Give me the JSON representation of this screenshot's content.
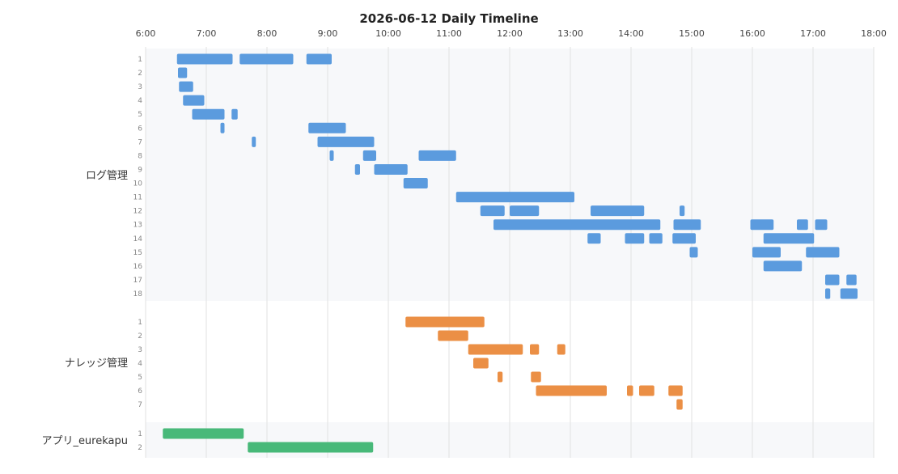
{
  "chart_data": {
    "type": "timeline",
    "title": "2026-06-12 Daily Timeline",
    "x_ticks": [
      "6:00",
      "7:00",
      "8:00",
      "9:00",
      "10:00",
      "11:00",
      "12:00",
      "13:00",
      "14:00",
      "15:00",
      "16:00",
      "17:00",
      "18:00"
    ],
    "xlim": [
      "6:00",
      "18:00"
    ],
    "grid": true,
    "groups": [
      {
        "name": "ログ管理",
        "color": "#5b9bde",
        "rows": [
          {
            "label": "1",
            "bars": [
              [
                "6:31",
                "7:26"
              ],
              [
                "7:33",
                "8:26"
              ],
              [
                "8:39",
                "9:04"
              ]
            ]
          },
          {
            "label": "2",
            "bars": [
              [
                "6:32",
                "6:41"
              ]
            ]
          },
          {
            "label": "3",
            "bars": [
              [
                "6:33",
                "6:47"
              ]
            ]
          },
          {
            "label": "4",
            "bars": [
              [
                "6:37",
                "6:58"
              ]
            ]
          },
          {
            "label": "5",
            "bars": [
              [
                "6:46",
                "7:18"
              ],
              [
                "7:25",
                "7:31"
              ]
            ]
          },
          {
            "label": "6",
            "bars": [
              [
                "7:14",
                "7:18"
              ],
              [
                "8:41",
                "9:18"
              ]
            ]
          },
          {
            "label": "7",
            "bars": [
              [
                "7:45",
                "7:49"
              ],
              [
                "8:50",
                "9:46"
              ]
            ]
          },
          {
            "label": "8",
            "bars": [
              [
                "9:02",
                "9:06"
              ],
              [
                "9:35",
                "9:48"
              ],
              [
                "10:30",
                "11:07"
              ]
            ]
          },
          {
            "label": "9",
            "bars": [
              [
                "9:27",
                "9:32"
              ],
              [
                "9:46",
                "10:19"
              ]
            ]
          },
          {
            "label": "10",
            "bars": [
              [
                "10:15",
                "10:39"
              ]
            ]
          },
          {
            "label": "11",
            "bars": [
              [
                "11:07",
                "13:04"
              ]
            ]
          },
          {
            "label": "12",
            "bars": [
              [
                "11:31",
                "11:55"
              ],
              [
                "12:00",
                "12:29"
              ],
              [
                "13:20",
                "14:13"
              ],
              [
                "14:48",
                "14:53"
              ]
            ]
          },
          {
            "label": "13",
            "bars": [
              [
                "11:44",
                "14:29"
              ],
              [
                "14:42",
                "15:09"
              ],
              [
                "15:58",
                "16:21"
              ],
              [
                "16:44",
                "16:55"
              ],
              [
                "17:02",
                "17:14"
              ]
            ]
          },
          {
            "label": "14",
            "bars": [
              [
                "13:17",
                "13:30"
              ],
              [
                "13:54",
                "14:13"
              ],
              [
                "14:18",
                "14:31"
              ],
              [
                "14:41",
                "15:04"
              ],
              [
                "16:11",
                "17:01"
              ]
            ]
          },
          {
            "label": "15",
            "bars": [
              [
                "14:58",
                "15:06"
              ],
              [
                "16:00",
                "16:28"
              ],
              [
                "16:53",
                "17:26"
              ]
            ]
          },
          {
            "label": "16",
            "bars": [
              [
                "16:11",
                "16:49"
              ]
            ]
          },
          {
            "label": "17",
            "bars": [
              [
                "17:12",
                "17:26"
              ],
              [
                "17:33",
                "17:43"
              ]
            ]
          },
          {
            "label": "18",
            "bars": [
              [
                "17:12",
                "17:17"
              ],
              [
                "17:27",
                "17:44"
              ]
            ]
          }
        ]
      },
      {
        "name": "ナレッジ管理",
        "color": "#eb8f45",
        "rows": [
          {
            "label": "1",
            "bars": [
              [
                "10:17",
                "11:35"
              ]
            ]
          },
          {
            "label": "2",
            "bars": [
              [
                "10:49",
                "11:19"
              ]
            ]
          },
          {
            "label": "3",
            "bars": [
              [
                "11:19",
                "12:13"
              ],
              [
                "12:20",
                "12:29"
              ],
              [
                "12:47",
                "12:55"
              ]
            ]
          },
          {
            "label": "4",
            "bars": [
              [
                "11:24",
                "11:39"
              ]
            ]
          },
          {
            "label": "5",
            "bars": [
              [
                "11:48",
                "11:53"
              ],
              [
                "12:21",
                "12:31"
              ]
            ]
          },
          {
            "label": "6",
            "bars": [
              [
                "12:26",
                "13:36"
              ],
              [
                "13:56",
                "14:02"
              ],
              [
                "14:08",
                "14:23"
              ],
              [
                "14:37",
                "14:51"
              ]
            ]
          },
          {
            "label": "7",
            "bars": [
              [
                "14:45",
                "14:51"
              ]
            ]
          }
        ]
      },
      {
        "name": "アプリ_eurekapu",
        "color": "#48b979",
        "rows": [
          {
            "label": "1",
            "bars": [
              [
                "6:17",
                "7:37"
              ]
            ]
          },
          {
            "label": "2",
            "bars": [
              [
                "7:41",
                "9:45"
              ]
            ]
          }
        ]
      }
    ]
  }
}
